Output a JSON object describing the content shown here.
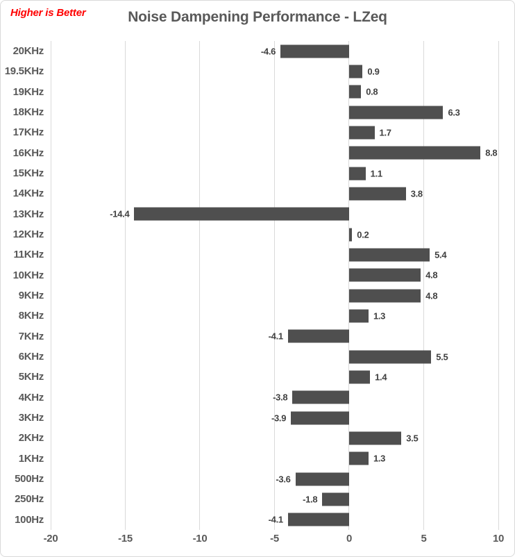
{
  "header": {
    "annotation": "Higher is Better",
    "title": "Noise Dampening Performance - LZeq"
  },
  "chart_data": {
    "type": "bar",
    "orientation": "horizontal",
    "title": "Noise Dampening Performance - LZeq",
    "annotation": "Higher is Better",
    "categories": [
      "20KHz",
      "19.5KHz",
      "19KHz",
      "18KHz",
      "17KHz",
      "16KHz",
      "15KHz",
      "14KHz",
      "13KHz",
      "12KHz",
      "11KHz",
      "10KHz",
      "9KHz",
      "8KHz",
      "7KHz",
      "6KHz",
      "5KHz",
      "4KHz",
      "3KHz",
      "2KHz",
      "1KHz",
      "500Hz",
      "250Hz",
      "100Hz"
    ],
    "values": [
      -4.6,
      0.9,
      0.8,
      6.3,
      1.7,
      8.8,
      1.1,
      3.8,
      -14.4,
      0.2,
      5.4,
      4.8,
      4.8,
      1.3,
      -4.1,
      5.5,
      1.4,
      -3.8,
      -3.9,
      3.5,
      1.3,
      -3.6,
      -1.8,
      -4.1
    ],
    "xlim": [
      -20,
      10
    ],
    "x_ticks": [
      -20,
      -15,
      -10,
      -5,
      0,
      5,
      10
    ],
    "grid": true,
    "legend": false,
    "data_labels": true,
    "colors": {
      "bar": "#4f4f4f",
      "gridline": "#d9d9d9",
      "category_label": "#595959",
      "value_label": "#404040",
      "title": "#595959",
      "annotation": "#ff0000"
    }
  }
}
